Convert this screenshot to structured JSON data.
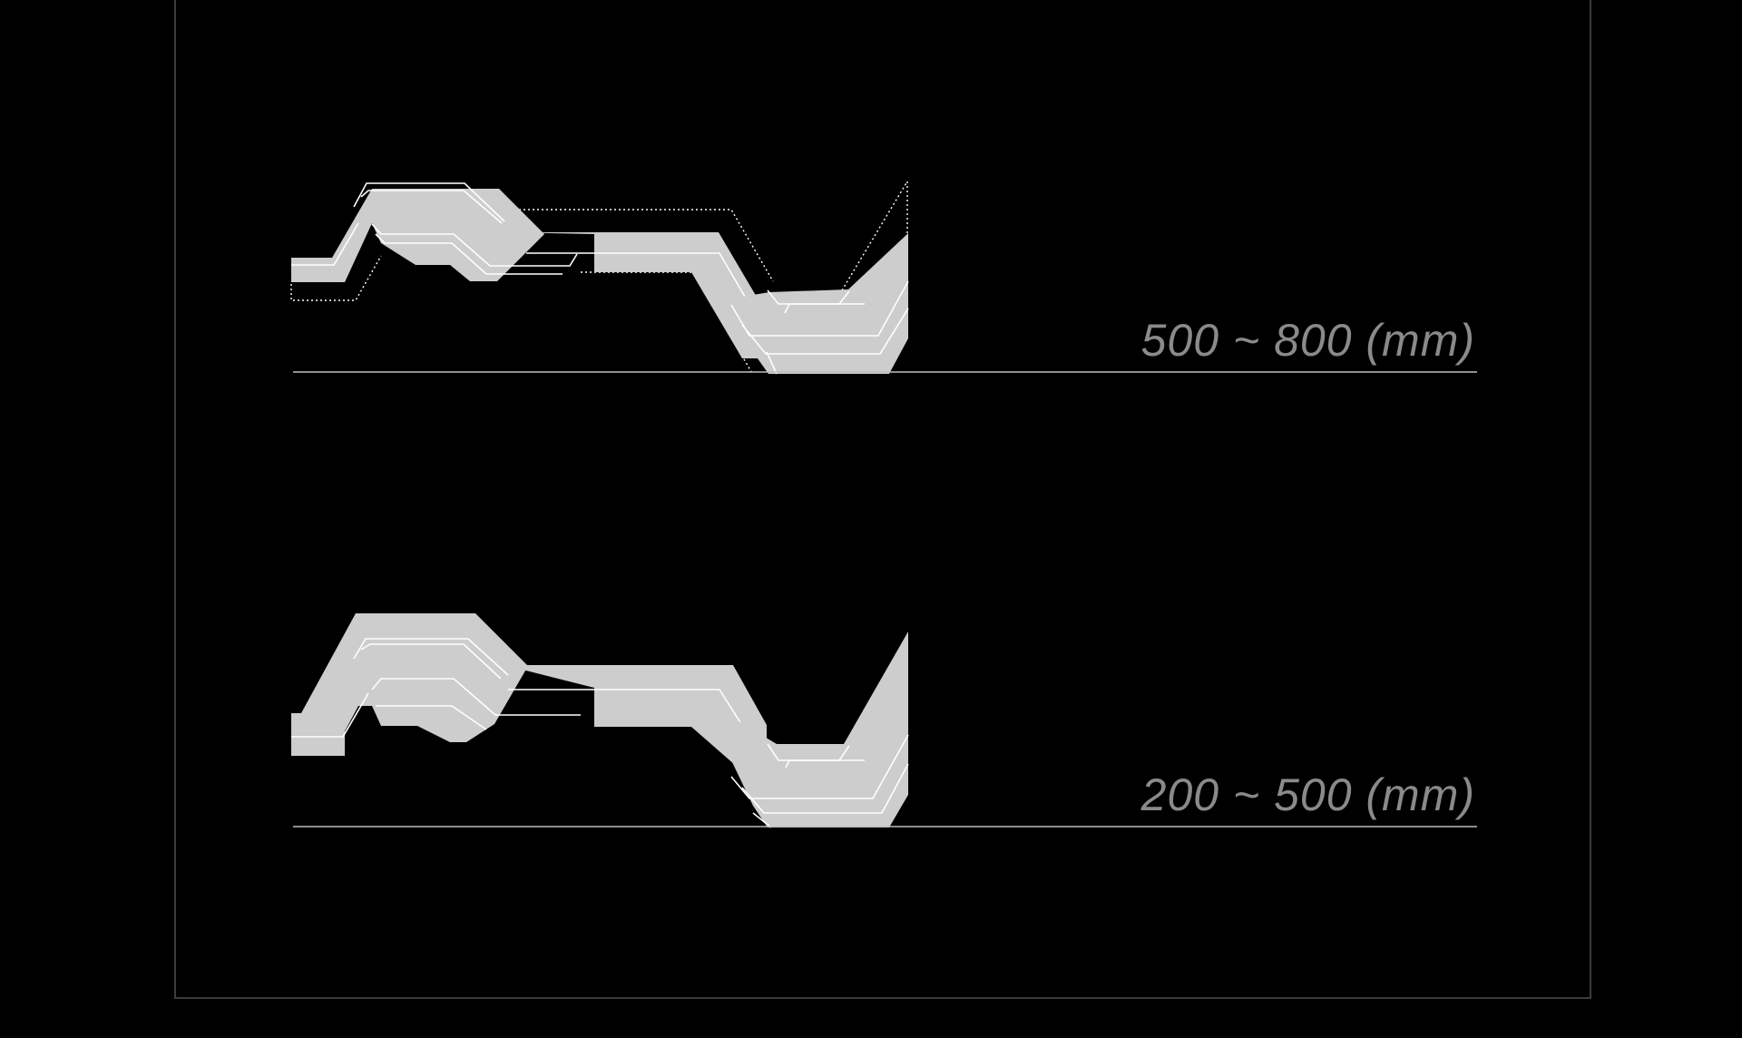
{
  "figure": {
    "colors": {
      "background": "#000000",
      "frame": "#3c3c3c",
      "label": "#8a8a8a",
      "segment": "#cdcdcd",
      "outline": "#ffffff",
      "ground": "#bdbdbd"
    }
  },
  "panels": [
    {
      "id": "expanded",
      "range_label": "500 ~ 800 (mm)",
      "shows_previous_position": true
    },
    {
      "id": "compact",
      "range_label": "200 ~ 500 (mm)",
      "shows_previous_position": false
    }
  ]
}
